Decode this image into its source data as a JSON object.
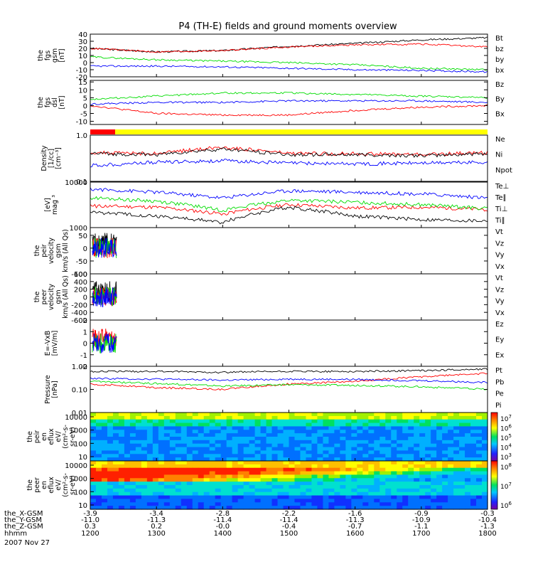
{
  "title": "P4 (TH-E) fields and ground moments overview",
  "date_label": "2007 Nov 27",
  "colors": {
    "black": "#000000",
    "red": "#ff0000",
    "green": "#00dd00",
    "blue": "#0000ff",
    "yellow": "#ffff00"
  },
  "chart_data": {
    "type": "line",
    "x_axis": {
      "label": "hhmm",
      "ticks": [
        "1200",
        "1300",
        "1400",
        "1500",
        "1600",
        "1700",
        "1800"
      ],
      "ephemeris": [
        {
          "label": "the_X-GSM",
          "values": [
            "-3.9",
            "-3.4",
            "-2.8",
            "-2.2",
            "-1.6",
            "-0.9",
            "-0.3"
          ]
        },
        {
          "label": "the_Y-GSM",
          "values": [
            "-11.0",
            "-11.3",
            "-11.4",
            "-11.4",
            "-11.3",
            "-10.9",
            "-10.4"
          ]
        },
        {
          "label": "the_Z-GSM",
          "values": [
            "0.3",
            "0.2",
            "-0.0",
            "-0.4",
            "-0.7",
            "-1.1",
            "-1.3"
          ]
        }
      ]
    },
    "panels": [
      {
        "id": "fgs_gsm",
        "ylabel": [
          "the",
          "fgs",
          "gsm",
          "[nT]"
        ],
        "yticks": [
          "-20",
          "-10",
          "0",
          "10",
          "20",
          "30",
          "40"
        ],
        "ylim": [
          -20,
          40
        ],
        "series": [
          {
            "name": "Bt",
            "color": "black",
            "anchors": [
              20,
              15,
              17,
              23,
              27,
              32,
              35
            ]
          },
          {
            "name": "bz",
            "color": "red",
            "anchors": [
              20,
              15,
              17,
              22,
              25,
              26,
              22
            ]
          },
          {
            "name": "by",
            "color": "green",
            "anchors": [
              8,
              4,
              2,
              0,
              -3,
              -8,
              -10
            ]
          },
          {
            "name": "bx",
            "color": "blue",
            "anchors": [
              -5,
              -5,
              -6,
              -8,
              -10,
              -11,
              -13
            ]
          }
        ]
      },
      {
        "id": "fgs_dsl",
        "ylabel": [
          "the",
          "fgs",
          "dsl",
          "[nT]"
        ],
        "yticks": [
          "-10",
          "-5",
          "0",
          "5",
          "10",
          "15"
        ],
        "ylim": [
          -12,
          16
        ],
        "series": [
          {
            "name": "Bz",
            "color": "red",
            "anchors": [
              0,
              -5,
              -6,
              -6,
              -3,
              -1,
              0
            ]
          },
          {
            "name": "By",
            "color": "green",
            "anchors": [
              4,
              6,
              8,
              8,
              7,
              6,
              5
            ]
          },
          {
            "name": "Bx",
            "color": "blue",
            "anchors": [
              1,
              2,
              2,
              3,
              3,
              3,
              2
            ]
          }
        ]
      },
      {
        "id": "density",
        "ylabel": [
          "Density",
          "[1/cc]",
          "[cm^-3]"
        ],
        "yticks": [
          "0.1",
          "1.0"
        ],
        "ylim": [
          0.1,
          1.0
        ],
        "scale": "log",
        "series": [
          {
            "name": "Ne",
            "color": "red",
            "anchors": [
              0.42,
              0.4,
              0.55,
              0.4,
              0.4,
              0.38,
              0.42
            ]
          },
          {
            "name": "Ni",
            "color": "black",
            "anchors": [
              0.4,
              0.38,
              0.5,
              0.38,
              0.38,
              0.36,
              0.4
            ]
          },
          {
            "name": "Npot",
            "color": "blue",
            "anchors": [
              0.22,
              0.26,
              0.28,
              0.25,
              0.24,
              0.25,
              0.26
            ]
          }
        ]
      },
      {
        "id": "temperature",
        "ylabel": [
          "[eV]",
          "mag ^3"
        ],
        "yticks": [
          "1000",
          "10000"
        ],
        "ylim": [
          1000,
          10000
        ],
        "scale": "log",
        "series": [
          {
            "name": "Te⊥",
            "color": "red",
            "anchors": [
              3000,
              2800,
              2000,
              3200,
              2700,
              2800,
              2500
            ]
          },
          {
            "name": "Te∥",
            "color": "black",
            "anchors": [
              2200,
              1800,
              1300,
              2800,
              1800,
              1500,
              1400
            ]
          },
          {
            "name": "Ti⊥",
            "color": "blue",
            "anchors": [
              7000,
              6000,
              4500,
              6500,
              6000,
              5500,
              4500
            ]
          },
          {
            "name": "Ti∥",
            "color": "green",
            "anchors": [
              4500,
              3800,
              2400,
              4000,
              3600,
              3200,
              2600
            ]
          }
        ]
      },
      {
        "id": "peir_velocity",
        "ylabel": [
          "the",
          "peir",
          "velocity",
          "gsm",
          "km/s (All Qs)"
        ],
        "yticks": [
          "-100",
          "-50",
          "0",
          "50"
        ],
        "ylim": [
          -100,
          80
        ],
        "series": [
          {
            "name": "Vt",
            "color": "black"
          },
          {
            "name": "Vz",
            "color": "red"
          },
          {
            "name": "Vy",
            "color": "green"
          },
          {
            "name": "Vx",
            "color": "blue"
          }
        ]
      },
      {
        "id": "peer_velocity",
        "ylabel": [
          "the",
          "peer",
          "velocity",
          "gsm",
          "km/s (All Qs)"
        ],
        "yticks": [
          "-600",
          "-400",
          "-200",
          "0",
          "200",
          "400",
          "600"
        ],
        "ylim": [
          -600,
          600
        ],
        "series": [
          {
            "name": "Vt",
            "color": "black"
          },
          {
            "name": "Vz",
            "color": "red"
          },
          {
            "name": "Vy",
            "color": "green"
          },
          {
            "name": "Vx",
            "color": "blue"
          }
        ]
      },
      {
        "id": "e_vxb",
        "ylabel": [
          "E=-VxB",
          "[mV/m]"
        ],
        "yticks": [
          "-2",
          "-1",
          "0",
          "1",
          "2"
        ],
        "ylim": [
          -2,
          2
        ],
        "series": [
          {
            "name": "Ez",
            "color": "red"
          },
          {
            "name": "Ey",
            "color": "green"
          },
          {
            "name": "Ex",
            "color": "blue"
          }
        ]
      },
      {
        "id": "pressure",
        "ylabel": [
          "Pressure",
          "[nPa]"
        ],
        "yticks": [
          "0.01",
          "0.10",
          "1.00"
        ],
        "ylim": [
          0.01,
          1.0
        ],
        "scale": "log",
        "series": [
          {
            "name": "Pt",
            "color": "black",
            "anchors": [
              0.6,
              0.6,
              0.55,
              0.6,
              0.6,
              0.65,
              0.75
            ]
          },
          {
            "name": "Pb",
            "color": "red",
            "anchors": [
              0.17,
              0.12,
              0.1,
              0.17,
              0.22,
              0.35,
              0.5
            ]
          },
          {
            "name": "Pe",
            "color": "green",
            "anchors": [
              0.22,
              0.18,
              0.14,
              0.16,
              0.15,
              0.13,
              0.1
            ]
          },
          {
            "name": "Pi",
            "color": "blue",
            "anchors": [
              0.3,
              0.28,
              0.25,
              0.28,
              0.27,
              0.24,
              0.2
            ]
          }
        ]
      },
      {
        "id": "peir_spec",
        "type": "heatmap",
        "ylabel": [
          "the",
          "peir",
          "en",
          "eflux",
          "eV/",
          "(cm^2-s-",
          "sr-eV)"
        ],
        "yticks": [
          "10",
          "100",
          "1000",
          "10000"
        ]
      },
      {
        "id": "peer_spec",
        "type": "heatmap",
        "ylabel": [
          "the",
          "peer",
          "en",
          "eflux",
          "eV/",
          "(cm^2-s-",
          "sr-eV)"
        ],
        "yticks": [
          "10",
          "100",
          "1000",
          "10000"
        ]
      }
    ],
    "colorbars": [
      {
        "ticks": [
          "10^7",
          "10^6",
          "10^5",
          "10^4",
          "10^3"
        ]
      },
      {
        "ticks": [
          "10^8",
          "10^7",
          "10^6"
        ]
      }
    ]
  }
}
